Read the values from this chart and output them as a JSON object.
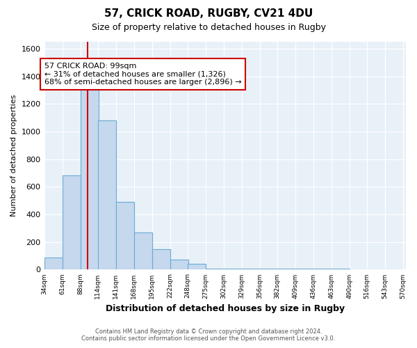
{
  "title": "57, CRICK ROAD, RUGBY, CV21 4DU",
  "subtitle": "Size of property relative to detached houses in Rugby",
  "xlabel": "Distribution of detached houses by size in Rugby",
  "ylabel": "Number of detached properties",
  "footer1": "Contains HM Land Registry data © Crown copyright and database right 2024.",
  "footer2": "Contains public sector information licensed under the Open Government Licence v3.0.",
  "annotation_line1": "57 CRICK ROAD: 99sqm",
  "annotation_line2": "← 31% of detached houses are smaller (1,326)",
  "annotation_line3": "68% of semi-detached houses are larger (2,896) →",
  "bin_starts": [
    34,
    61,
    88,
    114,
    141,
    168,
    195,
    222,
    248,
    275,
    302,
    329,
    356,
    382,
    409,
    436,
    463,
    490,
    516,
    543
  ],
  "bin_width": 27,
  "bin_labels": [
    "34sqm",
    "61sqm",
    "88sqm",
    "114sqm",
    "141sqm",
    "168sqm",
    "195sqm",
    "222sqm",
    "248sqm",
    "275sqm",
    "302sqm",
    "329sqm",
    "356sqm",
    "382sqm",
    "409sqm",
    "436sqm",
    "463sqm",
    "490sqm",
    "516sqm",
    "543sqm",
    "570sqm"
  ],
  "counts": [
    90,
    680,
    1340,
    1080,
    490,
    270,
    150,
    75,
    45,
    8,
    5,
    5,
    5,
    5,
    5,
    5,
    5,
    0,
    0,
    0
  ],
  "red_line_x": 99,
  "bar_color": "#c5d8ee",
  "bar_edge_color": "#6aaad4",
  "red_line_color": "#cc0000",
  "annotation_box_edge_color": "#cc0000",
  "bg_color": "#ffffff",
  "plot_bg_color": "#e8f0f8",
  "grid_color": "#ffffff",
  "ylim": [
    0,
    1650
  ],
  "yticks": [
    0,
    200,
    400,
    600,
    800,
    1000,
    1200,
    1400,
    1600
  ],
  "xlim_start": 34,
  "xlim_end": 574
}
